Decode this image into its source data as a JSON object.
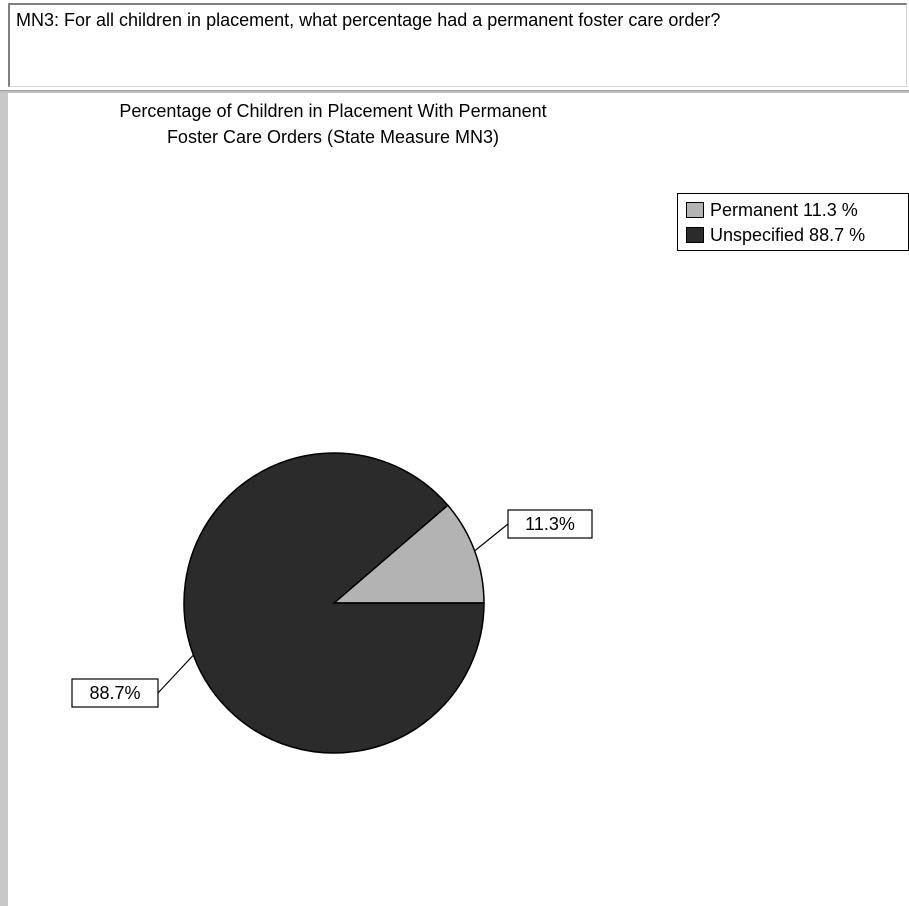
{
  "question": {
    "text": "MN3: For all children in placement, what percentage had a permanent foster care order?"
  },
  "colors": {
    "permanent": "#b3b3b3",
    "unspecified": "#2b2b2b",
    "outline": "#000000"
  },
  "chart_data": {
    "type": "pie",
    "title": "Percentage of Children in Placement With Permanent\nFoster Care Orders (State Measure MN3)",
    "legend_position": "top-right",
    "slices": [
      {
        "label": "Permanent",
        "value": 11.3,
        "legend_text": "Permanent 11.3 %",
        "data_label": "11.3%",
        "color": "#b3b3b3"
      },
      {
        "label": "Unspecified",
        "value": 88.7,
        "legend_text": "Unspecified 88.7 %",
        "data_label": "88.7%",
        "color": "#2b2b2b"
      }
    ]
  }
}
